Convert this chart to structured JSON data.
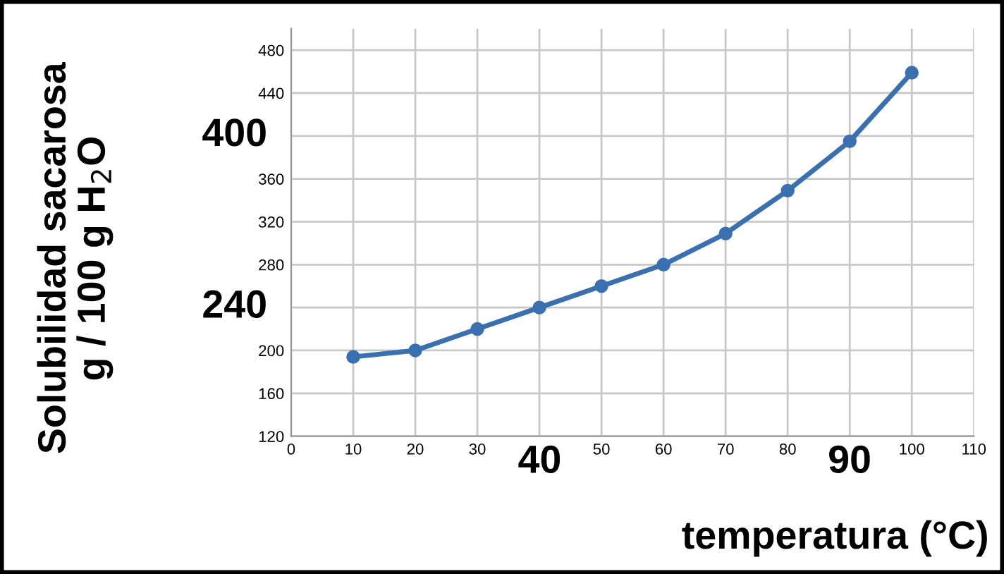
{
  "chart_data": {
    "type": "line",
    "xlabel": "temperatura (°C)",
    "ylabel": "Solubilidad sacarosa\ng / 100 g H$_{2}$O",
    "x": [
      10,
      20,
      30,
      40,
      50,
      60,
      70,
      80,
      90,
      100
    ],
    "series": [
      {
        "color": "#3a70b0",
        "values": [
          194,
          200,
          220,
          240,
          260,
          280,
          309,
          349,
          395,
          459
        ]
      }
    ],
    "xlim": [
      0,
      110
    ],
    "ylim": [
      120,
      500
    ],
    "xticks": [
      0,
      10,
      20,
      30,
      {
        "value": 40,
        "label": null
      },
      50,
      60,
      70,
      80,
      {
        "value": 90,
        "label": null
      },
      100,
      110
    ],
    "yticks": [
      120,
      160,
      200,
      {
        "value": 240,
        "label": null
      },
      280,
      320,
      360,
      {
        "value": 400,
        "label": null
      },
      440,
      480
    ],
    "annotations": [
      "400",
      "240",
      "40",
      "90"
    ],
    "grid": true,
    "marker": "circle",
    "line_style": "solid"
  }
}
